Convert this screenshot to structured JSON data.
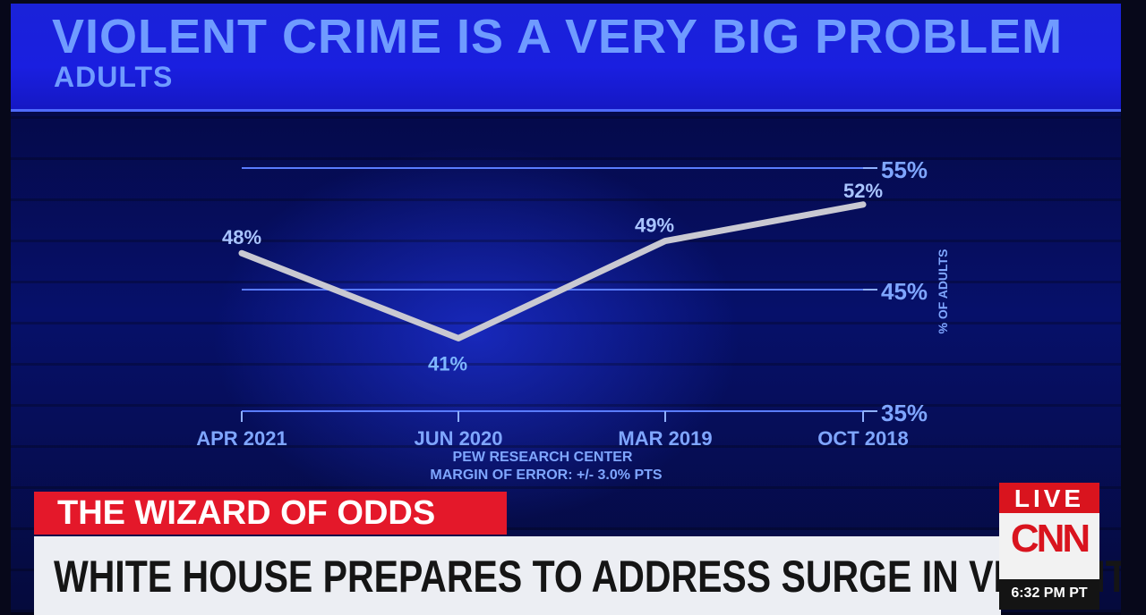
{
  "graphic": {
    "title": "VIOLENT CRIME IS A VERY BIG PROBLEM",
    "subtitle": "ADULTS"
  },
  "chart_data": {
    "type": "line",
    "categories": [
      "APR 2021",
      "JUN 2020",
      "MAR 2019",
      "OCT 2018"
    ],
    "series": [
      {
        "values": [
          48,
          41,
          49,
          52
        ],
        "labels": [
          "48%",
          "41%",
          "49%",
          "52%"
        ]
      }
    ],
    "ylabel": "% OF ADULTS",
    "ylim": [
      35,
      55
    ],
    "yticks": [
      55,
      45,
      35
    ],
    "ytick_labels": [
      "55%",
      "45%",
      "35%"
    ],
    "source": "PEW RESEARCH CENTER",
    "note": "MARGIN OF ERROR: +/- 3.0% PTS",
    "line_color": "#c9c9d2",
    "grid_color": "#5a7cff"
  },
  "ticker": {
    "segment": "THE WIZARD OF ODDS",
    "headline": "WHITE HOUSE PREPARES TO ADDRESS SURGE IN VIOLENT CRIME"
  },
  "bug": {
    "live": "LIVE",
    "network": "CNN",
    "time": "6:32 PM PT"
  }
}
